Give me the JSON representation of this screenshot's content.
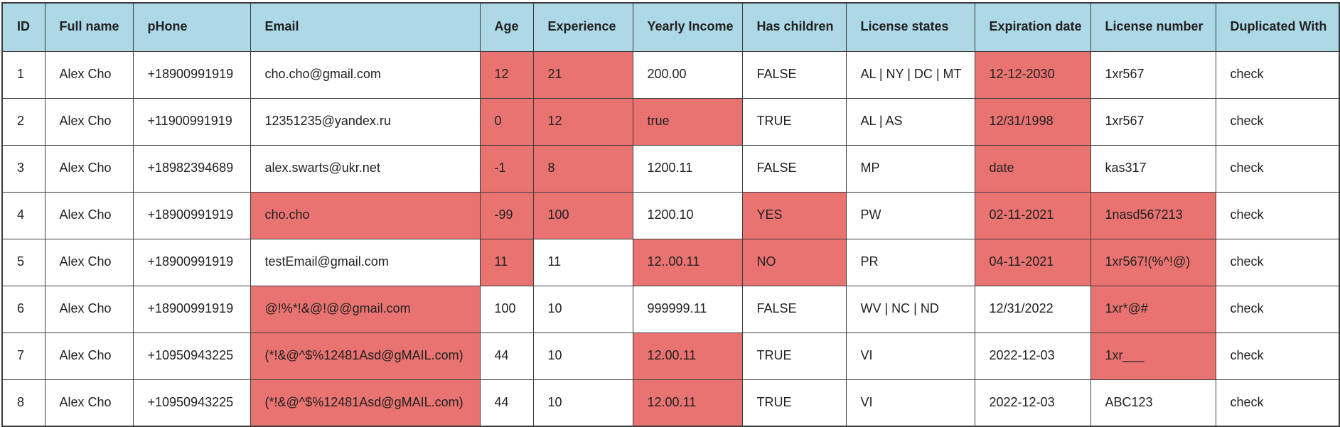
{
  "colors": {
    "header_bg": "#add8e6",
    "error_bg": "#e97370",
    "border": "#3c3c3c",
    "text": "#212121"
  },
  "table": {
    "columns": [
      {
        "key": "id",
        "label": "ID"
      },
      {
        "key": "full_name",
        "label": "Full name"
      },
      {
        "key": "phone",
        "label": "pHone"
      },
      {
        "key": "email",
        "label": "Email"
      },
      {
        "key": "age",
        "label": "Age"
      },
      {
        "key": "experience",
        "label": "Experience"
      },
      {
        "key": "yearly_income",
        "label": "Yearly Income"
      },
      {
        "key": "has_children",
        "label": "Has children"
      },
      {
        "key": "license_states",
        "label": "License states"
      },
      {
        "key": "expiration_date",
        "label": "Expiration date"
      },
      {
        "key": "license_number",
        "label": "License number"
      },
      {
        "key": "duplicated_with",
        "label": "Duplicated With"
      }
    ],
    "rows": [
      {
        "cells": {
          "id": "1",
          "full_name": "Alex Cho",
          "phone": "+18900991919",
          "email": "cho.cho@gmail.com",
          "age": "12",
          "experience": "21",
          "yearly_income": "200.00",
          "has_children": "FALSE",
          "license_states": "AL | NY | DC | MT",
          "expiration_date": "12-12-2030",
          "license_number": "1xr567",
          "duplicated_with": "check"
        },
        "invalid": [
          "age",
          "experience",
          "expiration_date"
        ]
      },
      {
        "cells": {
          "id": "2",
          "full_name": "Alex Cho",
          "phone": "+11900991919",
          "email": "12351235@yandex.ru",
          "age": "0",
          "experience": "12",
          "yearly_income": "true",
          "has_children": "TRUE",
          "license_states": "AL | AS",
          "expiration_date": "12/31/1998",
          "license_number": "1xr567",
          "duplicated_with": "check"
        },
        "invalid": [
          "age",
          "experience",
          "yearly_income",
          "expiration_date"
        ]
      },
      {
        "cells": {
          "id": "3",
          "full_name": "Alex Cho",
          "phone": "+18982394689",
          "email": "alex.swarts@ukr.net",
          "age": "-1",
          "experience": "8",
          "yearly_income": "1200.11",
          "has_children": "FALSE",
          "license_states": "MP",
          "expiration_date": "date",
          "license_number": "kas317",
          "duplicated_with": "check"
        },
        "invalid": [
          "age",
          "experience",
          "expiration_date"
        ]
      },
      {
        "cells": {
          "id": "4",
          "full_name": "Alex Cho",
          "phone": "+18900991919",
          "email": "cho.cho",
          "age": "-99",
          "experience": "100",
          "yearly_income": "1200.10",
          "has_children": "YES",
          "license_states": "PW",
          "expiration_date": "02-11-2021",
          "license_number": "1nasd567213",
          "duplicated_with": "check"
        },
        "invalid": [
          "email",
          "age",
          "experience",
          "has_children",
          "expiration_date",
          "license_number"
        ]
      },
      {
        "cells": {
          "id": "5",
          "full_name": "Alex Cho",
          "phone": "+18900991919",
          "email": "testEmail@gmail.com",
          "age": "11",
          "experience": "11",
          "yearly_income": "12..00.11",
          "has_children": "NO",
          "license_states": "PR",
          "expiration_date": "04-11-2021",
          "license_number": "1xr567!(%^!@)",
          "duplicated_with": "check"
        },
        "invalid": [
          "age",
          "yearly_income",
          "has_children",
          "expiration_date",
          "license_number"
        ]
      },
      {
        "cells": {
          "id": "6",
          "full_name": "Alex Cho",
          "phone": "+18900991919",
          "email": "@!%*!&@!@@gmail.com",
          "age": "100",
          "experience": "10",
          "yearly_income": "999999.11",
          "has_children": "FALSE",
          "license_states": "WV | NC | ND",
          "expiration_date": "12/31/2022",
          "license_number": "1xr*@#",
          "duplicated_with": "check"
        },
        "invalid": [
          "email",
          "license_number"
        ]
      },
      {
        "cells": {
          "id": "7",
          "full_name": "Alex Cho",
          "phone": "+10950943225",
          "email": "(*!&@^$%12481Asd@gMAIL.com)",
          "age": "44",
          "experience": "10",
          "yearly_income": "12.00.11",
          "has_children": "TRUE",
          "license_states": "VI",
          "expiration_date": "2022-12-03",
          "license_number": "1xr___",
          "duplicated_with": "check"
        },
        "invalid": [
          "email",
          "yearly_income",
          "license_number"
        ]
      },
      {
        "cells": {
          "id": "8",
          "full_name": "Alex Cho",
          "phone": "+10950943225",
          "email": "(*!&@^$%12481Asd@gMAIL.com)",
          "age": "44",
          "experience": "10",
          "yearly_income": "12.00.11",
          "has_children": "TRUE",
          "license_states": "VI",
          "expiration_date": "2022-12-03",
          "license_number": "ABC123",
          "duplicated_with": "check"
        },
        "invalid": [
          "email",
          "yearly_income"
        ]
      }
    ]
  }
}
